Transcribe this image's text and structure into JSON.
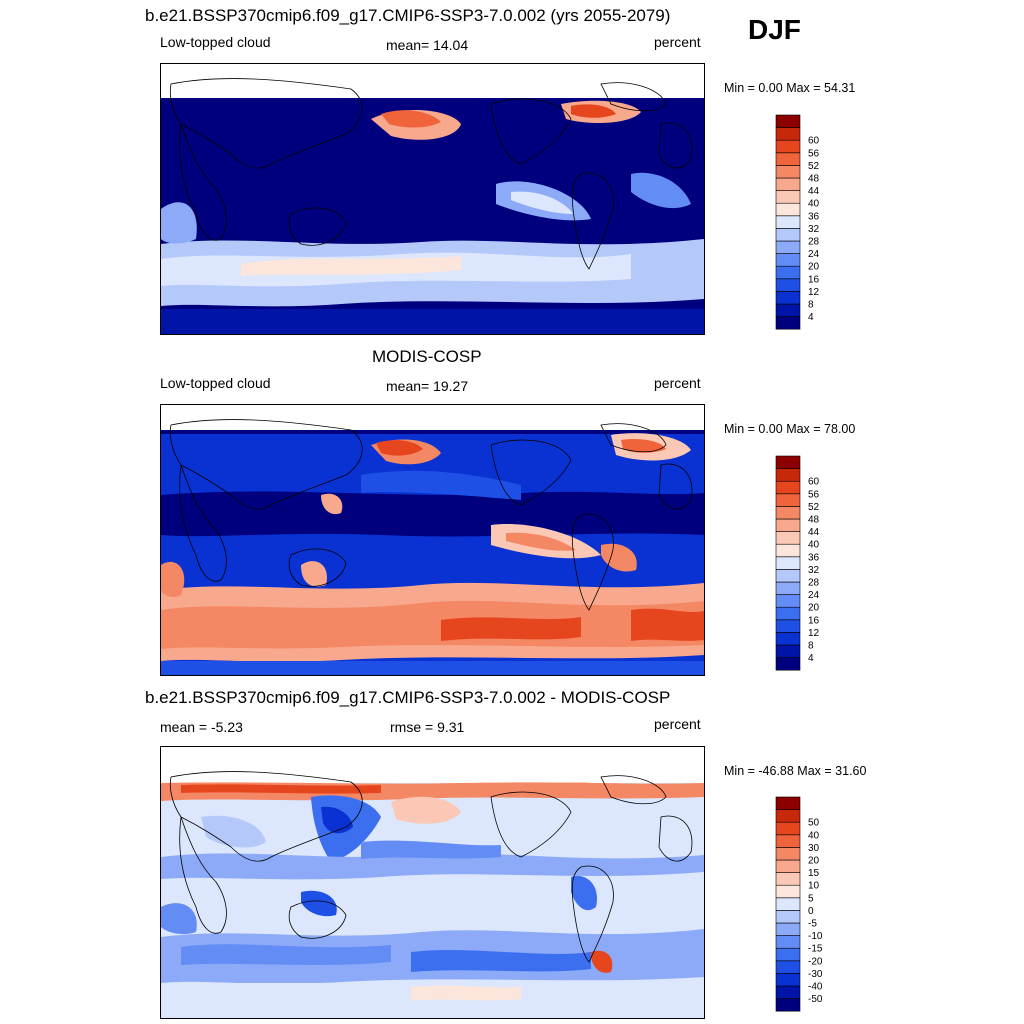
{
  "season": "DJF",
  "panels": [
    {
      "id": "model",
      "title": "b.e21.BSSP370cmip6.f09_g17.CMIP6-SSP3-7.0.002 (yrs 2055-2079)",
      "left_label": "Low-topped cloud",
      "center_label": "mean=  14.04",
      "right_label": "percent",
      "range_label": "Min =   0.00 Max =  54.31"
    },
    {
      "id": "obs",
      "title": "MODIS-COSP",
      "left_label": "Low-topped cloud",
      "center_label": "mean=  19.27",
      "right_label": "percent",
      "range_label": "Min =   0.00 Max =  78.00"
    },
    {
      "id": "diff",
      "title": "b.e21.BSSP370cmip6.f09_g17.CMIP6-SSP3-7.0.002 - MODIS-COSP",
      "left_label": "mean =  -5.23",
      "center_label": "rmse =   9.31",
      "right_label": "percent",
      "range_label": "Min = -46.88 Max =  31.60"
    }
  ],
  "colorbars": {
    "absolute": {
      "ticks": [
        "4",
        "8",
        "12",
        "16",
        "20",
        "24",
        "28",
        "32",
        "36",
        "40",
        "44",
        "48",
        "52",
        "56",
        "60"
      ],
      "colors": [
        "#00007f",
        "#0014a8",
        "#0a32d2",
        "#1e50e6",
        "#3c6ef0",
        "#648cf5",
        "#8caaf8",
        "#b4c8fa",
        "#dce6fc",
        "#fce6dc",
        "#fac8b4",
        "#f8a88c",
        "#f58864",
        "#f0643c",
        "#e6461e",
        "#c8280a",
        "#8c0000"
      ]
    },
    "difference": {
      "ticks": [
        "-50",
        "-40",
        "-30",
        "-20",
        "-15",
        "-10",
        "-5",
        "0",
        "5",
        "10",
        "15",
        "20",
        "30",
        "40",
        "50"
      ],
      "colors": [
        "#00007f",
        "#0014a8",
        "#0a32d2",
        "#1e50e6",
        "#3c6ef0",
        "#648cf5",
        "#8caaf8",
        "#b4c8fa",
        "#dce6fc",
        "#fce6dc",
        "#fac8b4",
        "#f8a88c",
        "#f58864",
        "#f0643c",
        "#e6461e",
        "#c8280a",
        "#8c0000"
      ]
    }
  },
  "chart_data": [
    {
      "type": "heatmap",
      "title": "b.e21.BSSP370cmip6.f09_g17.CMIP6-SSP3-7.0.002 (yrs 2055-2079)",
      "variable": "Low-topped cloud",
      "units": "percent",
      "season": "DJF",
      "mean": 14.04,
      "min": 0.0,
      "max": 54.31,
      "levels": [
        4,
        8,
        12,
        16,
        20,
        24,
        28,
        32,
        36,
        40,
        44,
        48,
        52,
        56,
        60
      ]
    },
    {
      "type": "heatmap",
      "title": "MODIS-COSP",
      "variable": "Low-topped cloud",
      "units": "percent",
      "season": "DJF",
      "mean": 19.27,
      "min": 0.0,
      "max": 78.0,
      "levels": [
        4,
        8,
        12,
        16,
        20,
        24,
        28,
        32,
        36,
        40,
        44,
        48,
        52,
        56,
        60
      ]
    },
    {
      "type": "heatmap",
      "title": "b.e21.BSSP370cmip6.f09_g17.CMIP6-SSP3-7.0.002 - MODIS-COSP",
      "units": "percent",
      "season": "DJF",
      "mean": -5.23,
      "rmse": 9.31,
      "min": -46.88,
      "max": 31.6,
      "levels": [
        -50,
        -40,
        -30,
        -20,
        -15,
        -10,
        -5,
        0,
        5,
        10,
        15,
        20,
        30,
        40,
        50
      ]
    }
  ]
}
